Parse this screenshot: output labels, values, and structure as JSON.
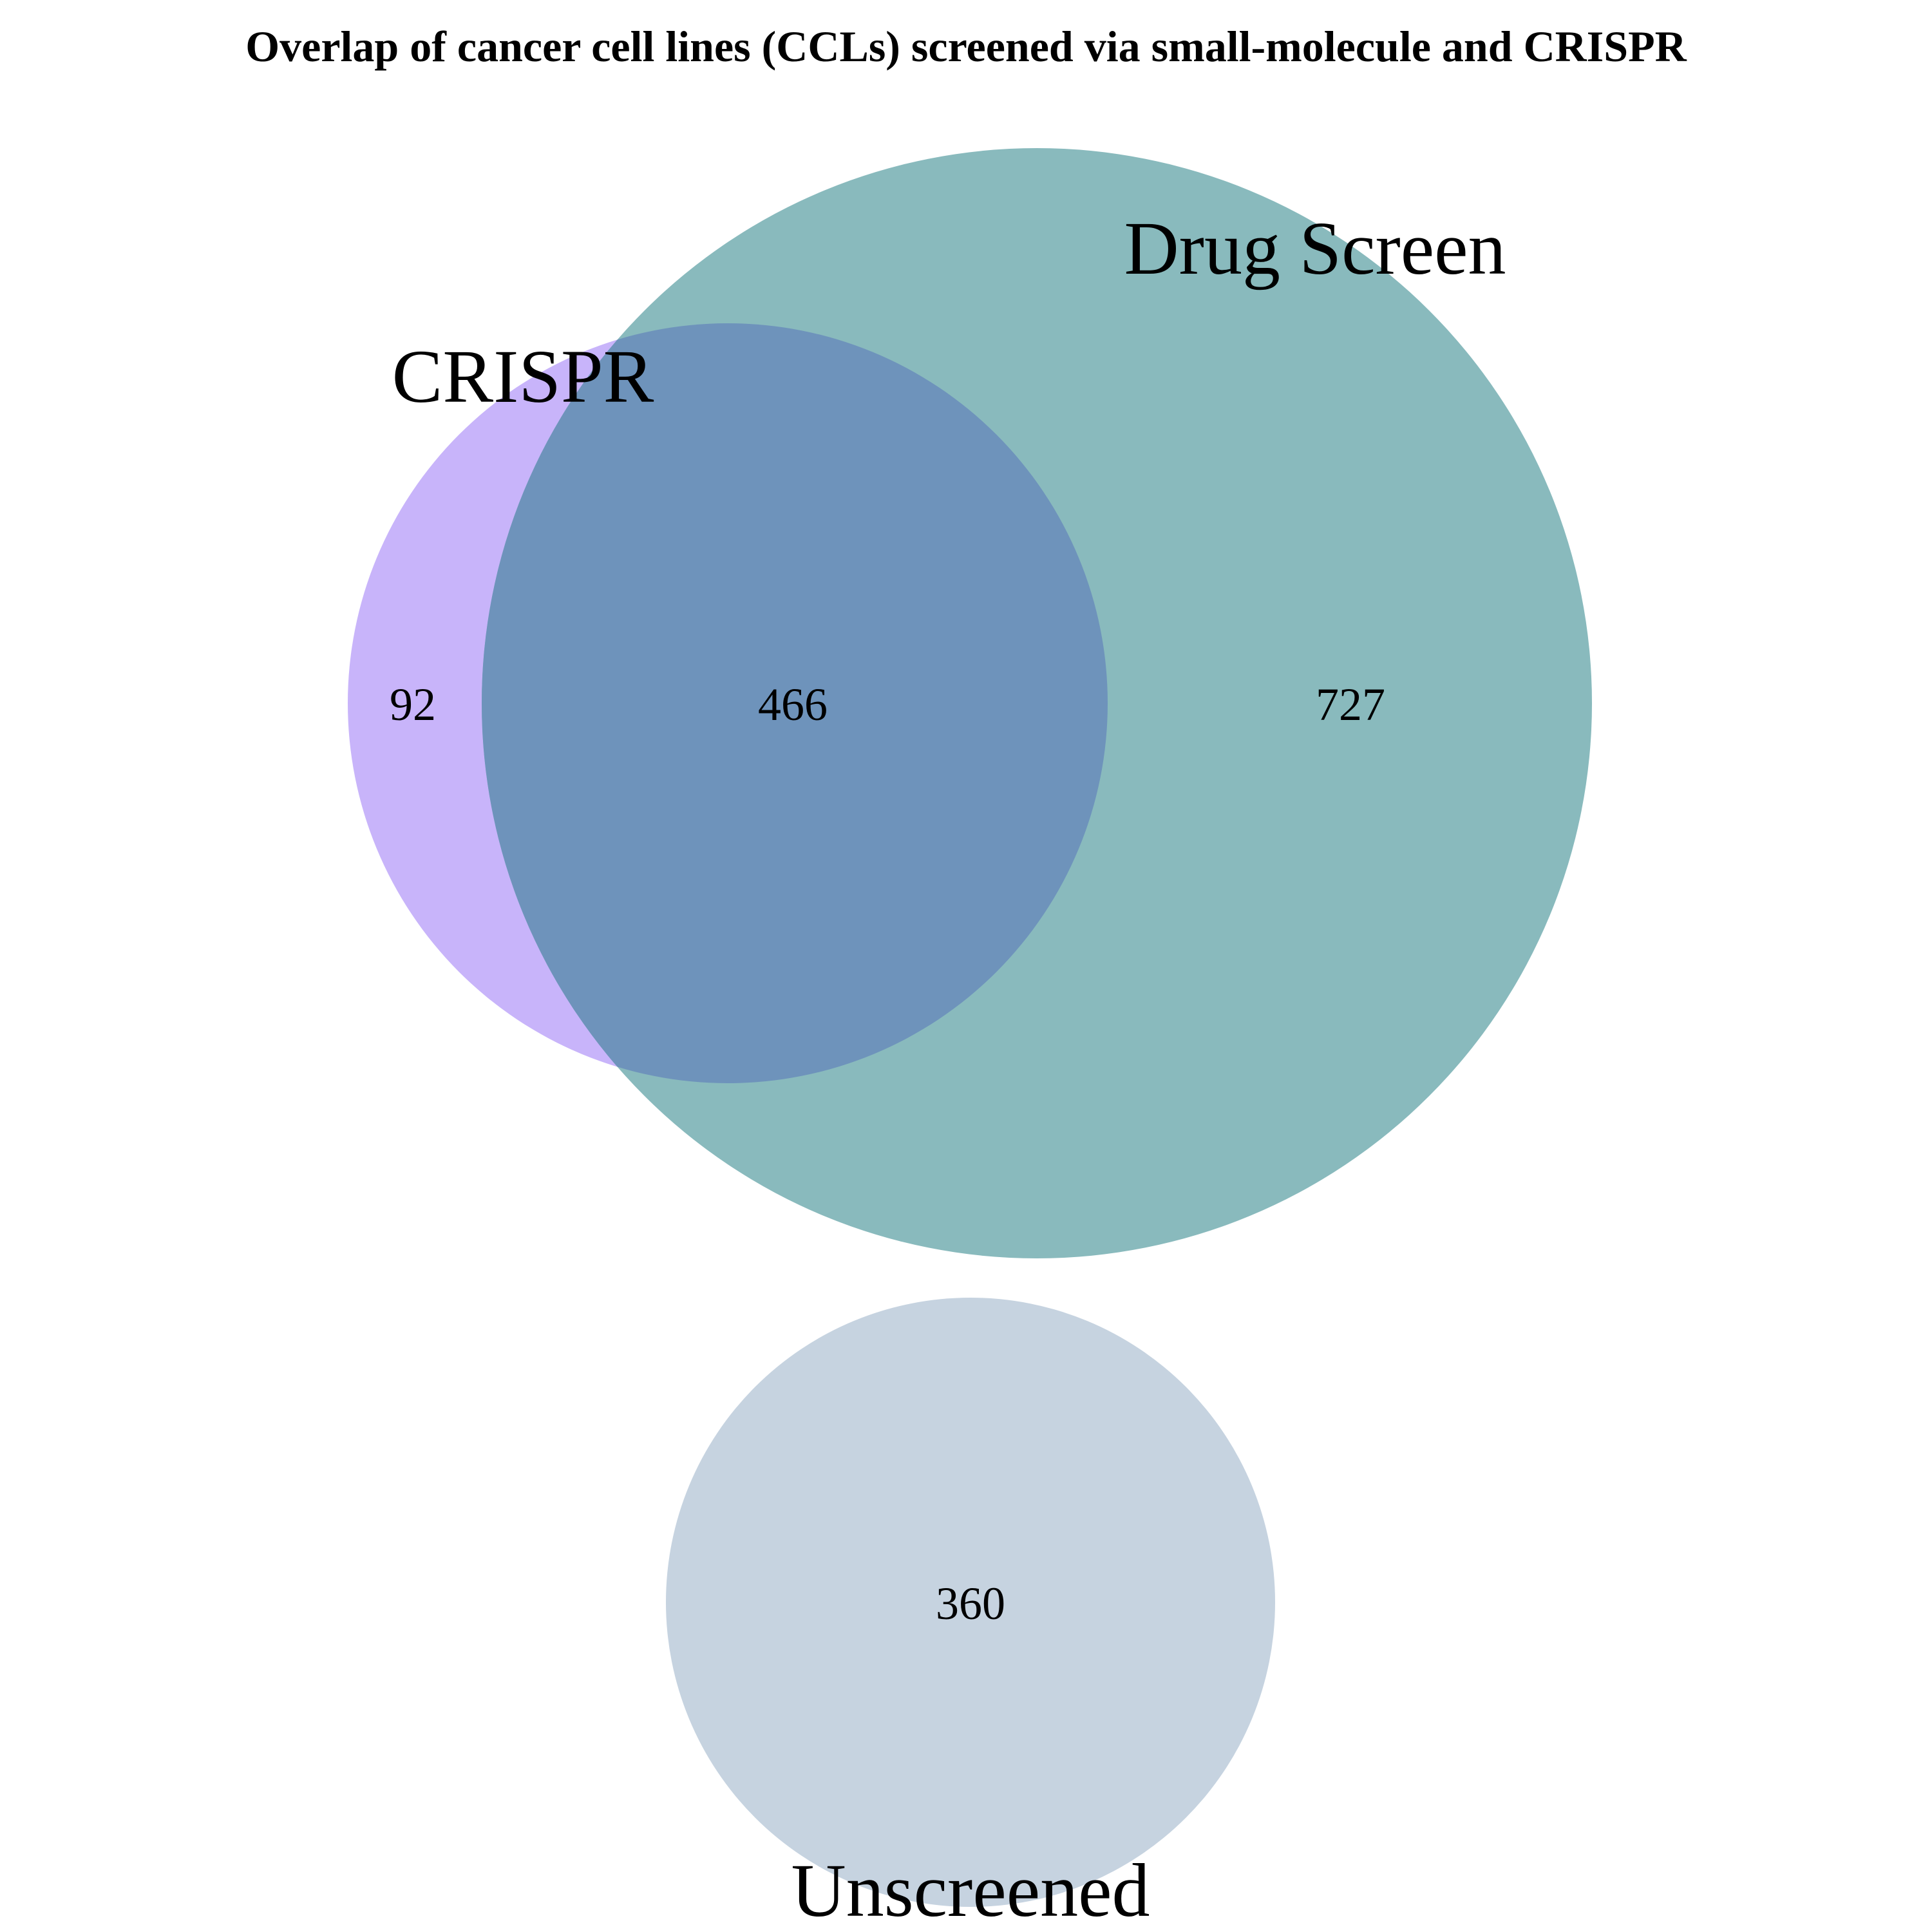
{
  "title": "Overlap of cancer cell lines (CCLs) screened via small-molecule and CRISPR",
  "sets": {
    "crispr": {
      "label": "CRISPR",
      "color": "#c8b4fa"
    },
    "drug_screen": {
      "label": "Drug Screen",
      "color": "#89babd"
    },
    "overlap": {
      "color": "#6e93bb"
    },
    "unscreened": {
      "label": "Unscreened",
      "color": "#c6d3e0"
    }
  },
  "counts": {
    "crispr_only": "92",
    "crispr_and_drug": "466",
    "drug_only": "727",
    "unscreened": "360"
  }
}
